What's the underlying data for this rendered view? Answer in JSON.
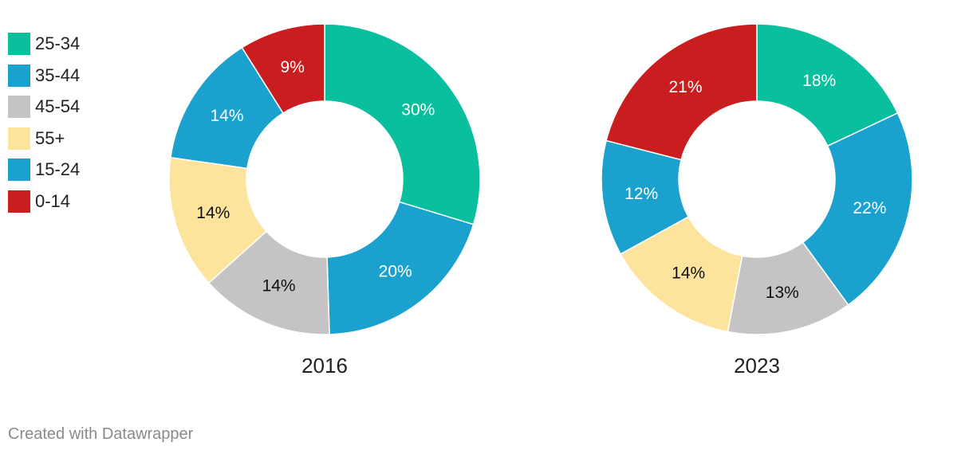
{
  "chart_data": [
    {
      "type": "pie",
      "title": "2016",
      "categories": [
        "25-34",
        "35-44",
        "45-54",
        "55+",
        "15-24",
        "0-14"
      ],
      "values": [
        30,
        20,
        14,
        14,
        14,
        9
      ],
      "labels": [
        "30%",
        "20%",
        "14%",
        "14%",
        "14%",
        "9%"
      ],
      "legend": "left"
    },
    {
      "type": "pie",
      "title": "2023",
      "categories": [
        "25-34",
        "35-44",
        "45-54",
        "55+",
        "15-24",
        "0-14"
      ],
      "values": [
        18,
        22,
        13,
        14,
        12,
        21
      ],
      "labels": [
        "18%",
        "22%",
        "13%",
        "14%",
        "12%",
        "21%"
      ],
      "legend": "left"
    }
  ],
  "legend": [
    {
      "label": "25-34",
      "color": "#0abf9e"
    },
    {
      "label": "35-44",
      "color": "#1aa1ce"
    },
    {
      "label": "45-54",
      "color": "#c4c4c4"
    },
    {
      "label": "55+",
      "color": "#fde49c"
    },
    {
      "label": "15-24",
      "color": "#1aa1ce"
    },
    {
      "label": "0-14",
      "color": "#c91d1f"
    }
  ],
  "label_colors": [
    "#ffffff",
    "#ffffff",
    "#111111",
    "#111111",
    "#ffffff",
    "#ffffff"
  ],
  "credit": "Created with Datawrapper"
}
